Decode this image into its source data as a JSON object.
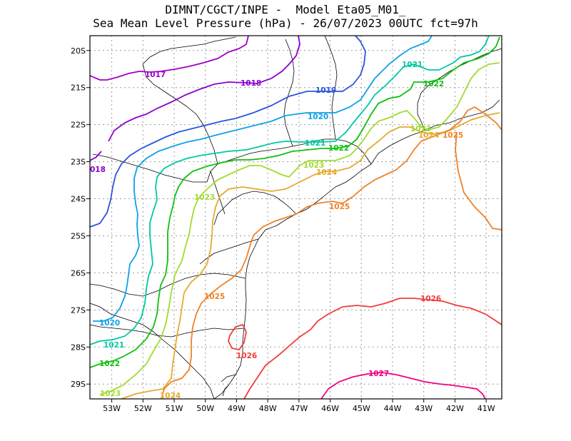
{
  "title": {
    "line1": "DIMNT/CGCT/INPE -  Model Eta05_M01_",
    "line2": "Sea Mean Level Pressure (hPa) - 26/07/2023 00UTC fct=97h"
  },
  "chart_data": {
    "type": "contour",
    "variable": "Sea Mean Level Pressure (hPa)",
    "lon_range": [
      -53.7,
      -40.5
    ],
    "lat_range": [
      -29.4,
      -19.6
    ],
    "lon_ticks": [
      "53W",
      "52W",
      "51W",
      "50W",
      "49W",
      "48W",
      "47W",
      "46W",
      "45W",
      "44W",
      "43W",
      "42W",
      "41W"
    ],
    "lat_ticks": [
      "20S",
      "21S",
      "22S",
      "23S",
      "24S",
      "25S",
      "26S",
      "27S",
      "28S",
      "29S"
    ],
    "grid": true,
    "contours": [
      {
        "level": "1017",
        "color": "#a000c8"
      },
      {
        "level": "1018",
        "color": "#8c00d0"
      },
      {
        "level": "1019",
        "color": "#2a55dd"
      },
      {
        "level": "1020",
        "color": "#0ea2e6"
      },
      {
        "level": "1021",
        "color": "#00c8a0"
      },
      {
        "level": "1022",
        "color": "#10c010"
      },
      {
        "level": "1023",
        "color": "#a0dc30"
      },
      {
        "level": "1024",
        "color": "#e6aa2d"
      },
      {
        "level": "1025",
        "color": "#f08228"
      },
      {
        "level": "1026",
        "color": "#f03c3c"
      },
      {
        "level": "1027",
        "color": "#f00082"
      }
    ]
  }
}
